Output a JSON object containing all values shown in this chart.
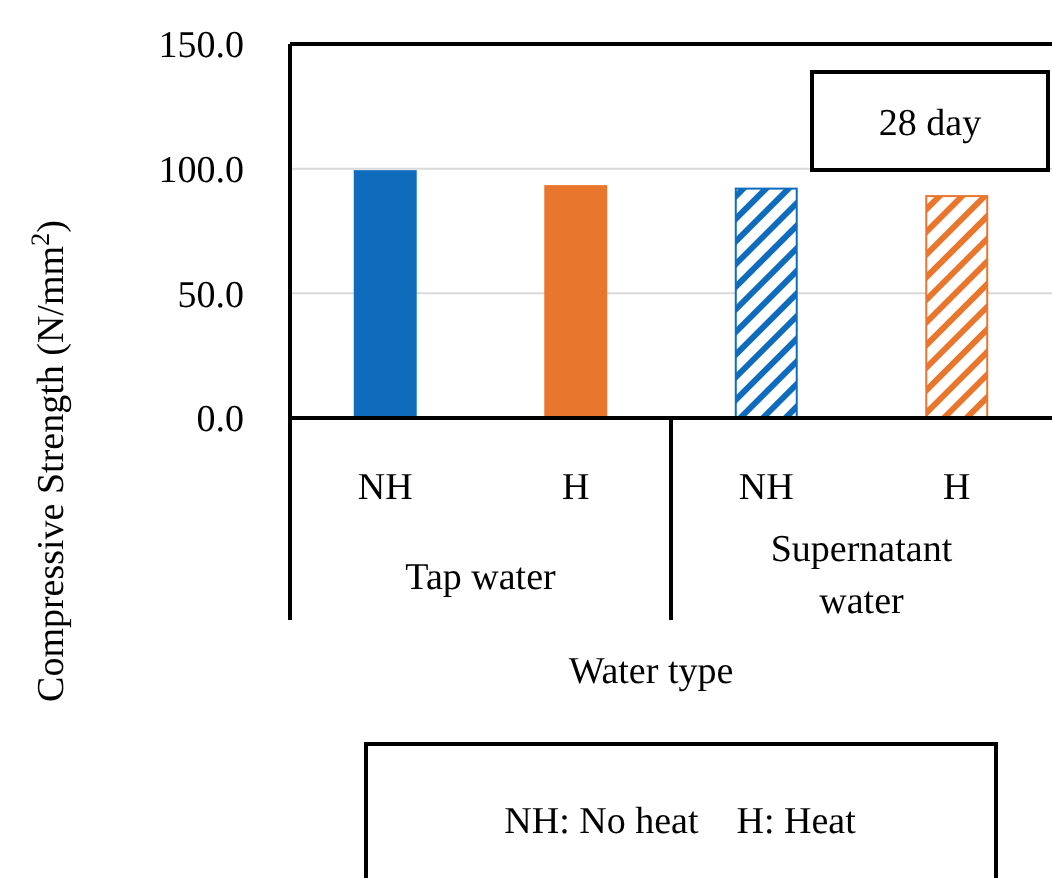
{
  "chart_data": {
    "type": "bar",
    "ylabel": "Compressive Strength (N/mm$^{2}$)",
    "xlabel": "Water type",
    "categories": [
      "NH",
      "H",
      "NH",
      "H"
    ],
    "values": [
      99,
      93,
      92,
      89
    ],
    "colors": [
      "#0f6cbd",
      "#e8762d",
      "#0f6cbd",
      "#e8762d"
    ],
    "ylim": [
      0,
      150
    ],
    "yticks": [
      {
        "value": 0,
        "label": "0.0"
      },
      {
        "value": 50,
        "label": "50.0"
      },
      {
        "value": 100,
        "label": "100.0"
      },
      {
        "value": 150,
        "label": "150.0"
      }
    ],
    "grid": "y",
    "annotations": [
      "Tap water",
      "Supernatant water",
      "28 day",
      "NH: No heat    H: Heat"
    ]
  }
}
